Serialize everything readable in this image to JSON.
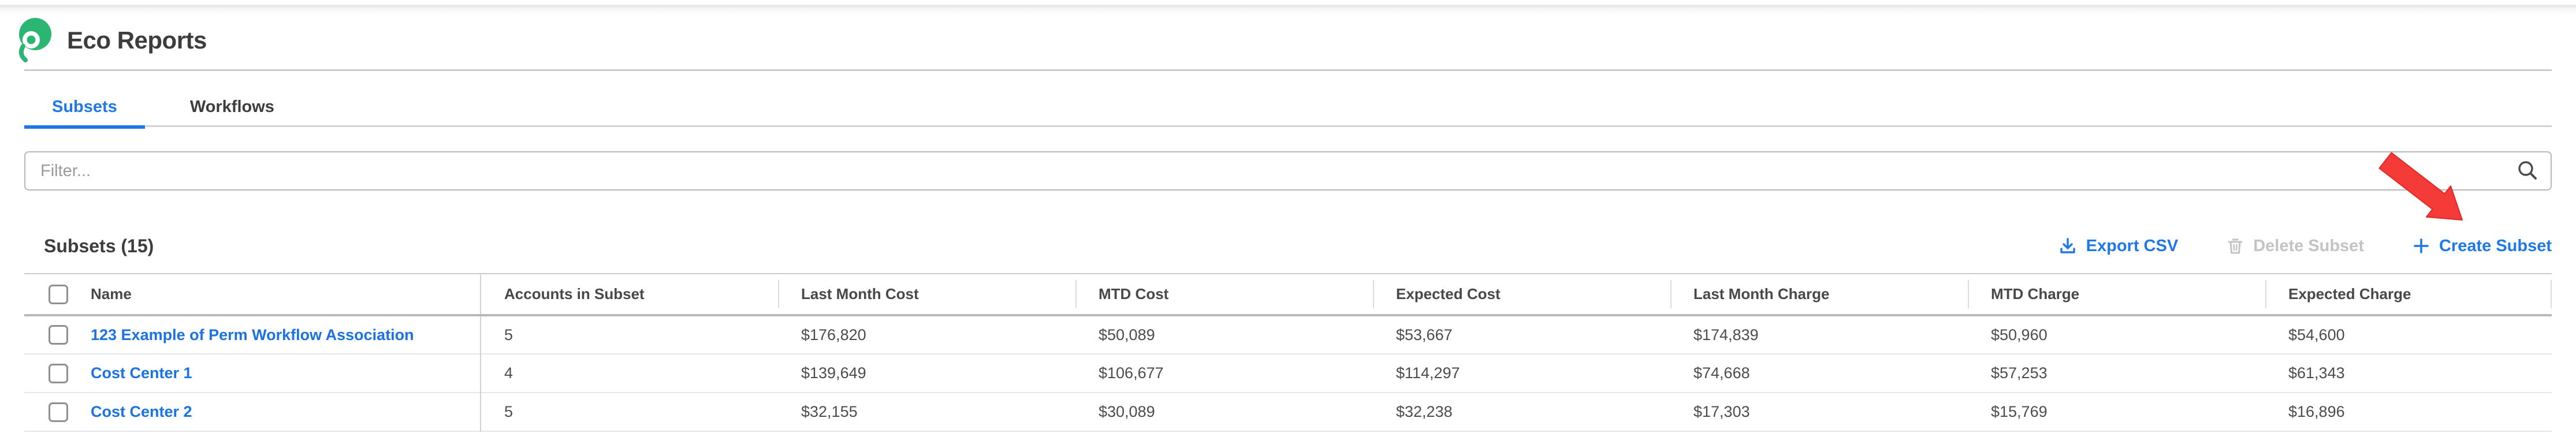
{
  "app": {
    "title": "Eco Reports"
  },
  "tabs": [
    {
      "label": "Subsets",
      "active": true
    },
    {
      "label": "Workflows",
      "active": false
    }
  ],
  "filter": {
    "placeholder": "Filter...",
    "value": ""
  },
  "toolbar": {
    "heading": "Subsets (15)",
    "export_csv_label": "Export CSV",
    "delete_subset_label": "Delete Subset",
    "create_subset_label": "Create Subset"
  },
  "annotation": {
    "shape": "red-arrow",
    "points_to": "Create Subset button",
    "color": "#f43b37"
  },
  "colors": {
    "accent_blue": "#1e78e8",
    "link_blue": "#1b72e3",
    "logo_green": "#2bb673",
    "disabled_gray": "#c3c3c3",
    "arrow_red": "#f43b37"
  },
  "table": {
    "columns": [
      "Name",
      "Accounts in Subset",
      "Last Month Cost",
      "MTD Cost",
      "Expected Cost",
      "Last Month Charge",
      "MTD Charge",
      "Expected Charge"
    ],
    "rows": [
      {
        "checked": false,
        "name": "123 Example of Perm Workflow Association",
        "accounts": "5",
        "last_month_cost": "$176,820",
        "mtd_cost": "$50,089",
        "expected_cost": "$53,667",
        "last_month_charge": "$174,839",
        "mtd_charge": "$50,960",
        "expected_charge": "$54,600"
      },
      {
        "checked": false,
        "name": "Cost Center 1",
        "accounts": "4",
        "last_month_cost": "$139,649",
        "mtd_cost": "$106,677",
        "expected_cost": "$114,297",
        "last_month_charge": "$74,668",
        "mtd_charge": "$57,253",
        "expected_charge": "$61,343"
      },
      {
        "checked": false,
        "name": "Cost Center 2",
        "accounts": "5",
        "last_month_cost": "$32,155",
        "mtd_cost": "$30,089",
        "expected_cost": "$32,238",
        "last_month_charge": "$17,303",
        "mtd_charge": "$15,769",
        "expected_charge": "$16,896"
      }
    ]
  }
}
